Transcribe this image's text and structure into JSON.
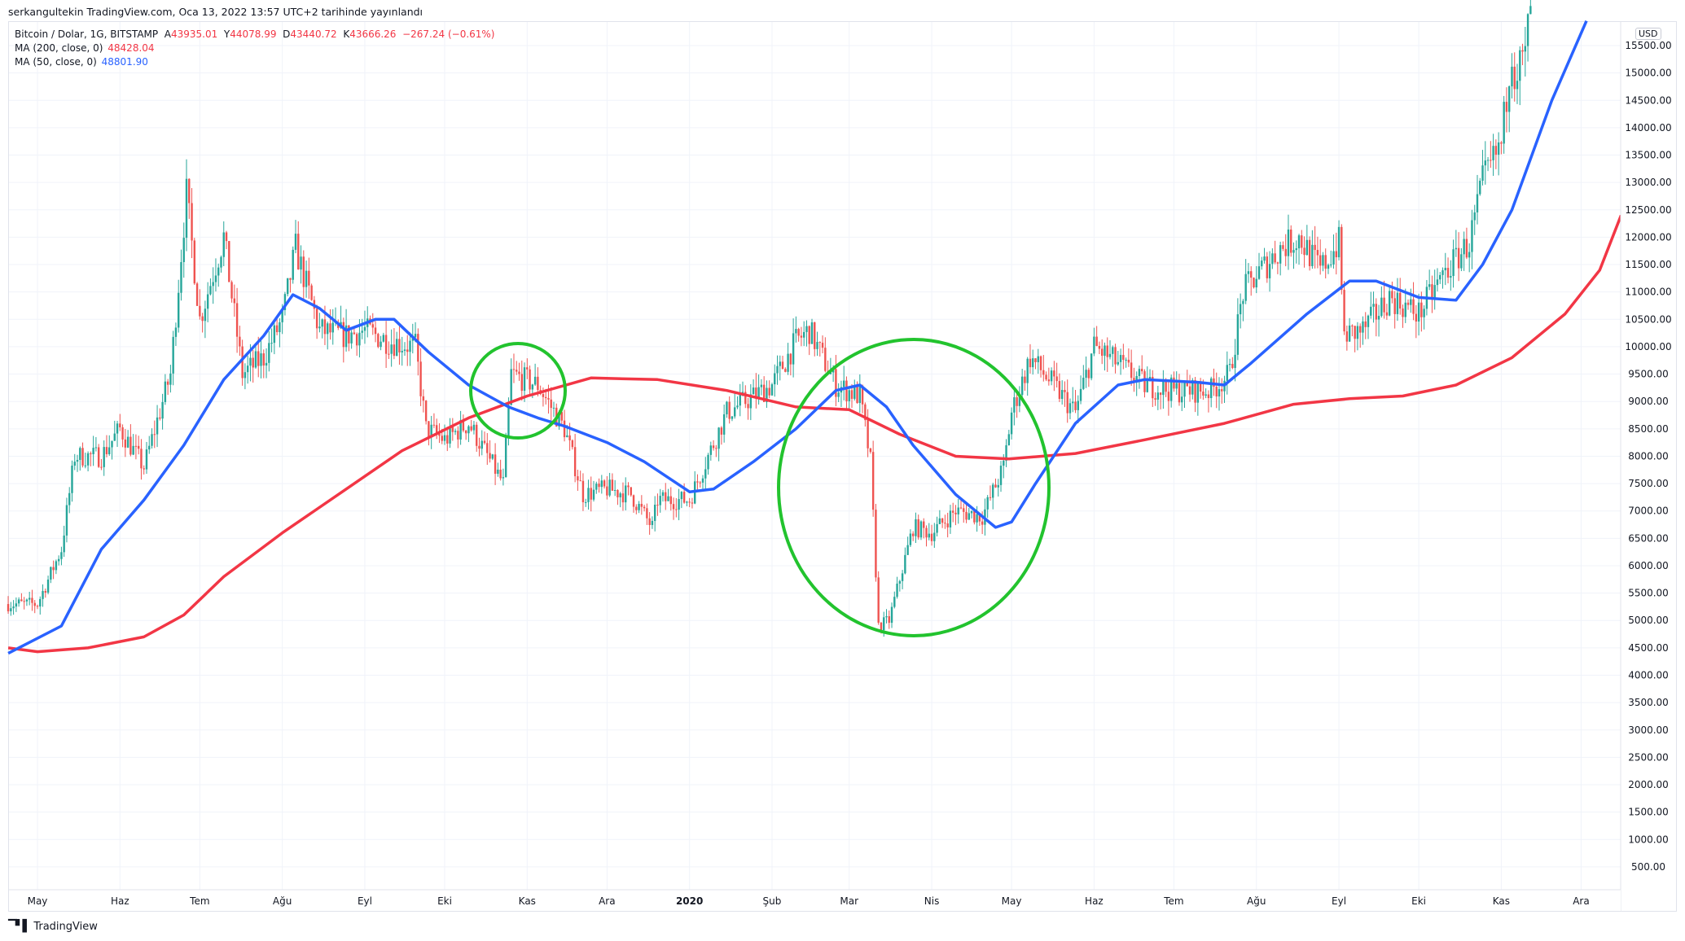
{
  "published": "serkangultekin TradingView.com, Oca 13, 2022 13:57 UTC+2 tarihinde yayınlandı",
  "legend": {
    "symbol": "Bitcoin / Dolar, 1G, BITSTAMP",
    "o_label": "A",
    "o": "43935.01",
    "h_label": "Y",
    "h": "44078.99",
    "l_label": "D",
    "l": "43440.72",
    "c_label": "K",
    "c": "43666.26",
    "change": "−267.24 (−0.61%)",
    "ma200_label": "MA (200, close, 0)",
    "ma200_value": "48428.04",
    "ma50_label": "MA (50, close, 0)",
    "ma50_value": "48801.90"
  },
  "currency": "USD",
  "footer": {
    "logo": "17",
    "brand": "TradingView"
  },
  "colors": {
    "up": "#26a69a",
    "down": "#ef5350",
    "ma200": "#f23645",
    "ma50": "#2962ff",
    "highlight": "#22c32e",
    "grid": "#f0f3fa"
  },
  "chart_data": {
    "type": "candlestick",
    "title": "Bitcoin / Dolar, 1G, BITSTAMP",
    "ylabel": "USD",
    "ylim": [
      0,
      16000
    ],
    "xlim": [
      "2019-04-20",
      "2020-12-31"
    ],
    "y_ticks": [
      "500.00",
      "1000.00",
      "1500.00",
      "2000.00",
      "2500.00",
      "3000.00",
      "3500.00",
      "4000.00",
      "4500.00",
      "5000.00",
      "5500.00",
      "6000.00",
      "6500.00",
      "7000.00",
      "7500.00",
      "8000.00",
      "8500.00",
      "9000.00",
      "9500.00",
      "10000.00",
      "10500.00",
      "11000.00",
      "11500.00",
      "12000.00",
      "12500.00",
      "13000.00",
      "13500.00",
      "14000.00",
      "14500.00",
      "15000.00",
      "15500.00"
    ],
    "x_ticks": [
      {
        "label": "May",
        "date": "2019-05-01"
      },
      {
        "label": "Haz",
        "date": "2019-06-01"
      },
      {
        "label": "Tem",
        "date": "2019-07-01"
      },
      {
        "label": "Ağu",
        "date": "2019-08-01"
      },
      {
        "label": "Eyl",
        "date": "2019-09-01"
      },
      {
        "label": "Eki",
        "date": "2019-10-01"
      },
      {
        "label": "Kas",
        "date": "2019-11-01"
      },
      {
        "label": "Ara",
        "date": "2019-12-01"
      },
      {
        "label": "2020",
        "date": "2020-01-01"
      },
      {
        "label": "Şub",
        "date": "2020-02-01"
      },
      {
        "label": "Mar",
        "date": "2020-03-01"
      },
      {
        "label": "Nis",
        "date": "2020-04-01"
      },
      {
        "label": "May",
        "date": "2020-05-01"
      },
      {
        "label": "Haz",
        "date": "2020-06-01"
      },
      {
        "label": "Tem",
        "date": "2020-07-01"
      },
      {
        "label": "Ağu",
        "date": "2020-08-01"
      },
      {
        "label": "Eyl",
        "date": "2020-09-01"
      },
      {
        "label": "Eki",
        "date": "2020-10-01"
      },
      {
        "label": "Kas",
        "date": "2020-11-01"
      },
      {
        "label": "Ara",
        "date": "2020-12-01"
      }
    ],
    "price_approx": [
      [
        "2019-04-20",
        5300
      ],
      [
        "2019-05-01",
        5300
      ],
      [
        "2019-05-10",
        6300
      ],
      [
        "2019-05-15",
        8000
      ],
      [
        "2019-05-25",
        8000
      ],
      [
        "2019-06-01",
        8500
      ],
      [
        "2019-06-10",
        7800
      ],
      [
        "2019-06-20",
        9500
      ],
      [
        "2019-06-26",
        12800
      ],
      [
        "2019-07-01",
        10500
      ],
      [
        "2019-07-10",
        12000
      ],
      [
        "2019-07-17",
        9500
      ],
      [
        "2019-07-25",
        9800
      ],
      [
        "2019-08-01",
        10500
      ],
      [
        "2019-08-06",
        11800
      ],
      [
        "2019-08-15",
        10300
      ],
      [
        "2019-08-25",
        10200
      ],
      [
        "2019-09-01",
        10300
      ],
      [
        "2019-09-10",
        10100
      ],
      [
        "2019-09-20",
        10000
      ],
      [
        "2019-09-24",
        8500
      ],
      [
        "2019-10-01",
        8300
      ],
      [
        "2019-10-10",
        8600
      ],
      [
        "2019-10-23",
        7500
      ],
      [
        "2019-10-26",
        9500
      ],
      [
        "2019-11-05",
        9300
      ],
      [
        "2019-11-15",
        8500
      ],
      [
        "2019-11-22",
        7300
      ],
      [
        "2019-12-01",
        7400
      ],
      [
        "2019-12-10",
        7300
      ],
      [
        "2019-12-18",
        6700
      ],
      [
        "2019-12-20",
        7200
      ],
      [
        "2020-01-01",
        7200
      ],
      [
        "2020-01-08",
        8000
      ],
      [
        "2020-01-15",
        8800
      ],
      [
        "2020-02-01",
        9300
      ],
      [
        "2020-02-10",
        10100
      ],
      [
        "2020-02-15",
        10300
      ],
      [
        "2020-02-25",
        9300
      ],
      [
        "2020-03-05",
        9100
      ],
      [
        "2020-03-09",
        7900
      ],
      [
        "2020-03-12",
        4900
      ],
      [
        "2020-03-16",
        5000
      ],
      [
        "2020-03-25",
        6700
      ],
      [
        "2020-04-01",
        6600
      ],
      [
        "2020-04-10",
        7000
      ],
      [
        "2020-04-20",
        6900
      ],
      [
        "2020-04-28",
        7800
      ],
      [
        "2020-05-01",
        8800
      ],
      [
        "2020-05-08",
        9800
      ],
      [
        "2020-05-15",
        9400
      ],
      [
        "2020-05-25",
        8800
      ],
      [
        "2020-06-01",
        10000
      ],
      [
        "2020-06-10",
        9700
      ],
      [
        "2020-06-20",
        9300
      ],
      [
        "2020-07-01",
        9200
      ],
      [
        "2020-07-15",
        9200
      ],
      [
        "2020-07-22",
        9500
      ],
      [
        "2020-07-27",
        11000
      ],
      [
        "2020-08-01",
        11300
      ],
      [
        "2020-08-10",
        11800
      ],
      [
        "2020-08-17",
        12000
      ],
      [
        "2020-08-25",
        11400
      ],
      [
        "2020-09-01",
        11900
      ],
      [
        "2020-09-03",
        10200
      ],
      [
        "2020-09-10",
        10300
      ],
      [
        "2020-09-20",
        10900
      ],
      [
        "2020-10-01",
        10600
      ],
      [
        "2020-10-10",
        11300
      ],
      [
        "2020-10-20",
        11900
      ],
      [
        "2020-10-25",
        13000
      ],
      [
        "2020-11-01",
        13700
      ],
      [
        "2020-11-05",
        15500
      ],
      [
        "2020-11-06",
        15000
      ],
      [
        "2020-11-10",
        15300
      ],
      [
        "2020-11-12",
        16300
      ]
    ],
    "series": [
      {
        "name": "MA (200, close, 0)",
        "points": [
          [
            "2019-04-20",
            4500
          ],
          [
            "2019-05-01",
            4430
          ],
          [
            "2019-05-20",
            4500
          ],
          [
            "2019-06-10",
            4700
          ],
          [
            "2019-06-25",
            5100
          ],
          [
            "2019-07-10",
            5800
          ],
          [
            "2019-08-01",
            6600
          ],
          [
            "2019-08-25",
            7400
          ],
          [
            "2019-09-15",
            8100
          ],
          [
            "2019-10-10",
            8700
          ],
          [
            "2019-11-01",
            9100
          ],
          [
            "2019-11-25",
            9430
          ],
          [
            "2019-12-20",
            9400
          ],
          [
            "2020-01-15",
            9200
          ],
          [
            "2020-02-10",
            8900
          ],
          [
            "2020-03-01",
            8850
          ],
          [
            "2020-03-20",
            8400
          ],
          [
            "2020-04-10",
            8000
          ],
          [
            "2020-04-30",
            7950
          ],
          [
            "2020-05-25",
            8050
          ],
          [
            "2020-06-20",
            8300
          ],
          [
            "2020-07-20",
            8600
          ],
          [
            "2020-08-15",
            8950
          ],
          [
            "2020-09-05",
            9050
          ],
          [
            "2020-09-25",
            9100
          ],
          [
            "2020-10-15",
            9300
          ],
          [
            "2020-11-05",
            9800
          ],
          [
            "2020-11-25",
            10600
          ],
          [
            "2020-12-08",
            11400
          ],
          [
            "2020-12-16",
            12400
          ]
        ]
      },
      {
        "name": "MA (50, close, 0)",
        "points": [
          [
            "2019-04-20",
            4400
          ],
          [
            "2019-05-10",
            4900
          ],
          [
            "2019-05-25",
            6300
          ],
          [
            "2019-06-10",
            7200
          ],
          [
            "2019-06-25",
            8200
          ],
          [
            "2019-07-10",
            9400
          ],
          [
            "2019-07-25",
            10200
          ],
          [
            "2019-08-05",
            10950
          ],
          [
            "2019-08-15",
            10700
          ],
          [
            "2019-08-25",
            10300
          ],
          [
            "2019-09-05",
            10500
          ],
          [
            "2019-09-12",
            10500
          ],
          [
            "2019-09-25",
            9900
          ],
          [
            "2019-10-10",
            9300
          ],
          [
            "2019-10-25",
            8900
          ],
          [
            "2019-11-05",
            8700
          ],
          [
            "2019-11-15",
            8550
          ],
          [
            "2019-12-01",
            8250
          ],
          [
            "2019-12-15",
            7900
          ],
          [
            "2020-01-01",
            7350
          ],
          [
            "2020-01-10",
            7400
          ],
          [
            "2020-01-25",
            7900
          ],
          [
            "2020-02-10",
            8500
          ],
          [
            "2020-02-25",
            9200
          ],
          [
            "2020-03-05",
            9300
          ],
          [
            "2020-03-15",
            8900
          ],
          [
            "2020-03-25",
            8200
          ],
          [
            "2020-04-10",
            7300
          ],
          [
            "2020-04-25",
            6700
          ],
          [
            "2020-05-01",
            6800
          ],
          [
            "2020-05-10",
            7500
          ],
          [
            "2020-05-25",
            8600
          ],
          [
            "2020-06-10",
            9300
          ],
          [
            "2020-06-20",
            9400
          ],
          [
            "2020-07-10",
            9350
          ],
          [
            "2020-07-20",
            9300
          ],
          [
            "2020-07-30",
            9700
          ],
          [
            "2020-08-20",
            10600
          ],
          [
            "2020-09-05",
            11200
          ],
          [
            "2020-09-15",
            11200
          ],
          [
            "2020-10-01",
            10900
          ],
          [
            "2020-10-15",
            10850
          ],
          [
            "2020-10-25",
            11500
          ],
          [
            "2020-11-05",
            12500
          ],
          [
            "2020-11-20",
            14500
          ],
          [
            "2020-12-03",
            15950
          ]
        ]
      }
    ]
  }
}
